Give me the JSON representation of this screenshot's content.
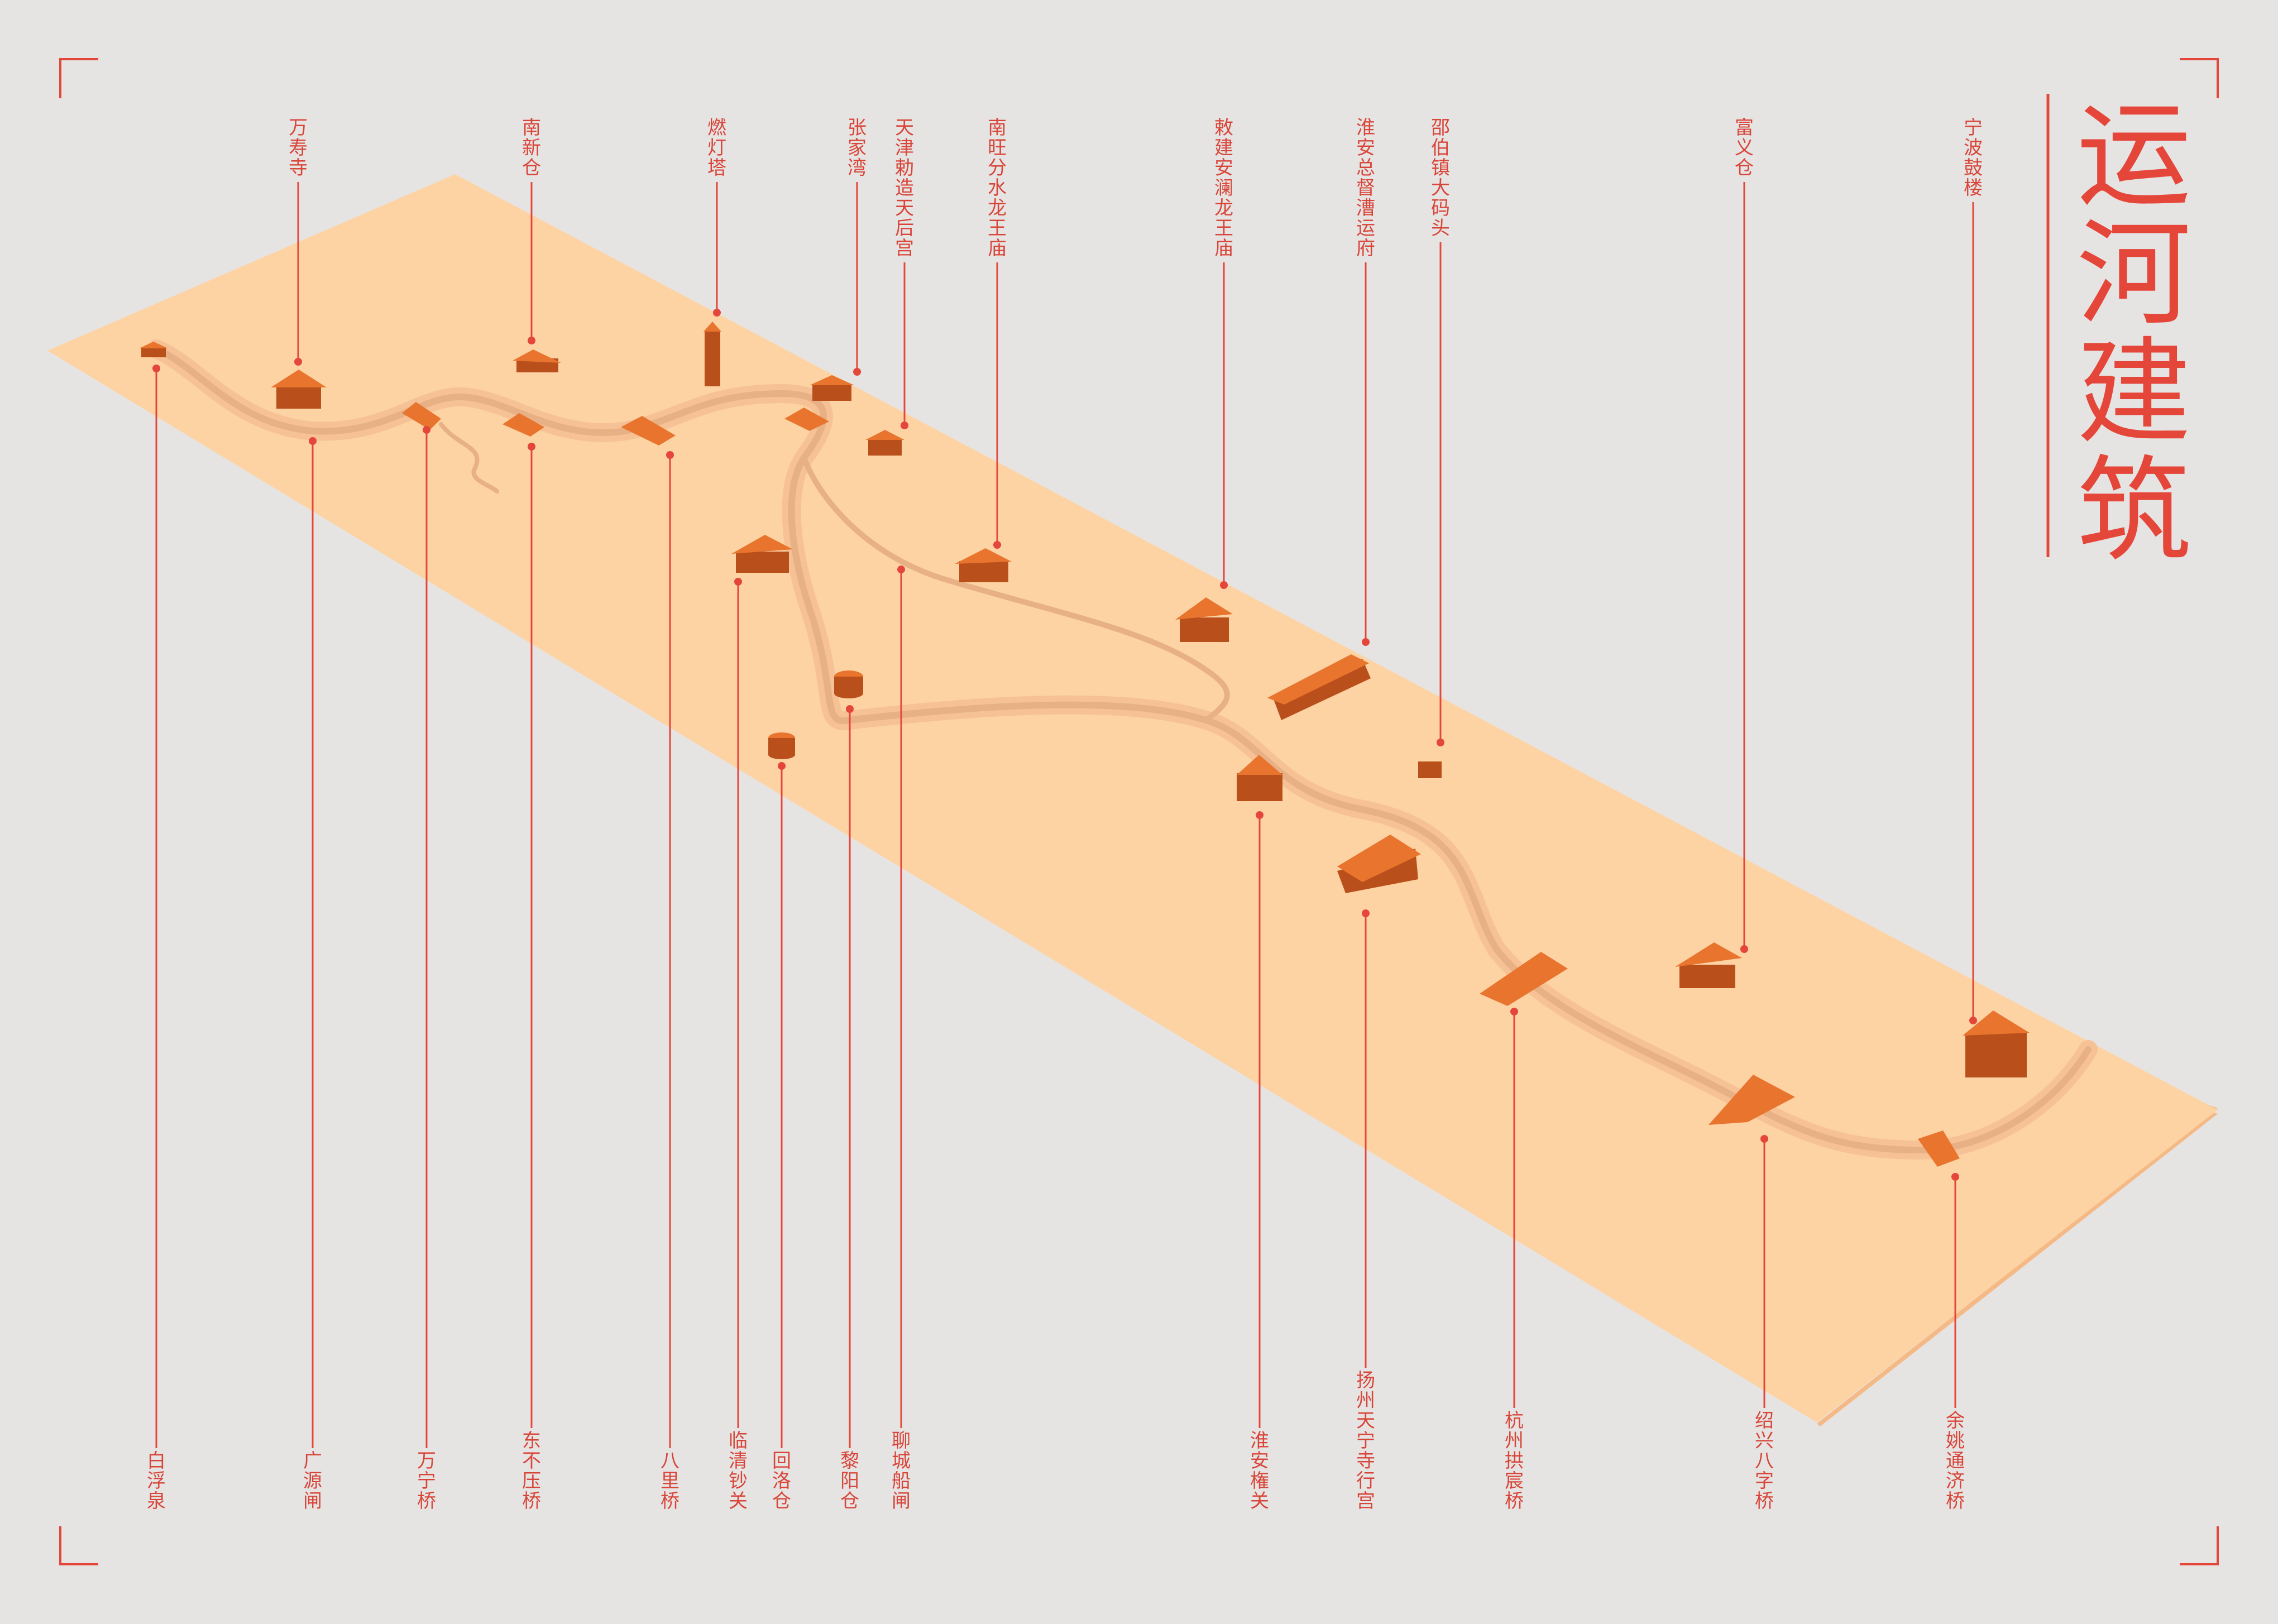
{
  "title": [
    "运",
    "河",
    "建",
    "筑"
  ],
  "colors": {
    "background": "#e6e4e3",
    "accent": "#e5463a",
    "plate_top": "#fdd3a4",
    "plate_side": "#f4b985",
    "river": "#f0bf92",
    "building": "#e8742e",
    "building_dark": "#b9501c"
  },
  "top_labels": [
    {
      "id": "wanshou-si",
      "text": "万寿寺"
    },
    {
      "id": "nanxin-cang",
      "text": "南新仓"
    },
    {
      "id": "randeng-ta",
      "text": "燃灯塔"
    },
    {
      "id": "zhangjia-wan",
      "text": "张家湾"
    },
    {
      "id": "tianjin-tianhou-gong",
      "text": "天津勅造天后宫"
    },
    {
      "id": "nanwang-longwang-miao",
      "text": "南旺分水龙王庙"
    },
    {
      "id": "anlan-longwang-miao",
      "text": "敕建安澜龙王庙"
    },
    {
      "id": "huaian-caoyun-fu",
      "text": "淮安总督漕运府"
    },
    {
      "id": "shaobo-matou",
      "text": "邵伯镇大码头"
    },
    {
      "id": "fuyi-cang",
      "text": "富义仓"
    },
    {
      "id": "ningbo-gulou",
      "text": "宁波鼓楼"
    }
  ],
  "bottom_labels": [
    {
      "id": "baifu-quan",
      "text": "白浮泉"
    },
    {
      "id": "guangyuan-zha",
      "text": "广源闸"
    },
    {
      "id": "wanning-qiao",
      "text": "万宁桥"
    },
    {
      "id": "dongbuya-qiao",
      "text": "东不压桥"
    },
    {
      "id": "bali-qiao",
      "text": "八里桥"
    },
    {
      "id": "linqing-chaoguan",
      "text": "临清钞关"
    },
    {
      "id": "huiluo-cang",
      "text": "回洛仓"
    },
    {
      "id": "liyang-cang",
      "text": "黎阳仓"
    },
    {
      "id": "liaocheng-chuanzha",
      "text": "聊城船闸"
    },
    {
      "id": "huaian-queguan",
      "text": "淮安権关"
    },
    {
      "id": "yangzhou-tianning-si",
      "text": "扬州天宁寺行宫"
    },
    {
      "id": "hangzhou-gongchen-qiao",
      "text": "杭州拱宸桥"
    },
    {
      "id": "shaoxing-bazi-qiao",
      "text": "绍兴八字桥"
    },
    {
      "id": "yuyao-tongji-qiao",
      "text": "余姚通济桥"
    }
  ]
}
